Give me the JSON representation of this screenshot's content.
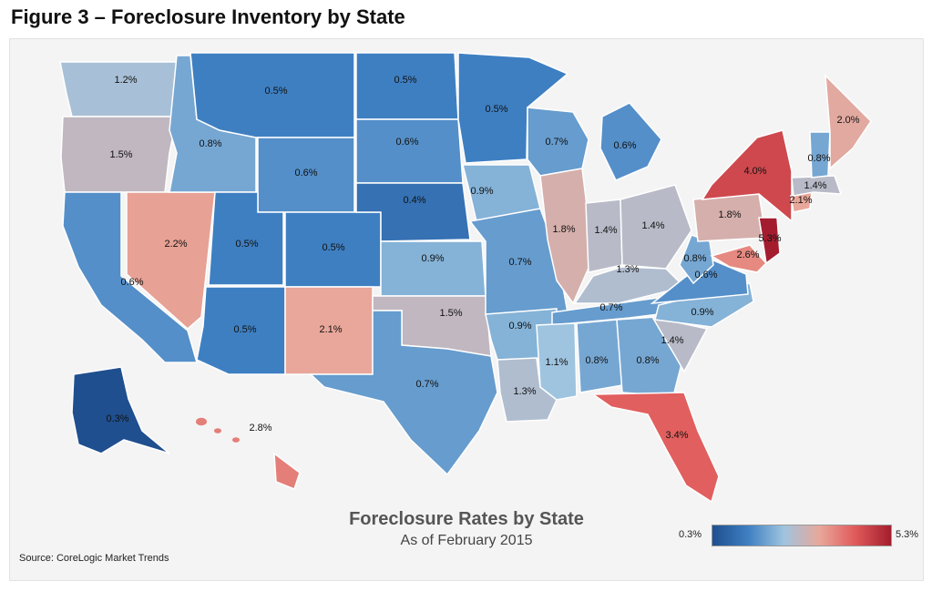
{
  "figure_title": "Figure 3 – Foreclosure Inventory by State",
  "chart_data": {
    "type": "choropleth",
    "title": "Foreclosure Rates by State",
    "subtitle": "As of February 2015",
    "source": "Source: CoreLogic Market Trends",
    "value_range": [
      0.3,
      5.3
    ],
    "legend": {
      "min_label": "0.3%",
      "max_label": "5.3%",
      "colors": [
        "#1f4f8f",
        "#3e7fc2",
        "#9fc4df",
        "#e8a79a",
        "#e05a5a",
        "#a31d2e"
      ]
    },
    "states": [
      {
        "id": "WA",
        "value": 1.2,
        "label": "1.2%"
      },
      {
        "id": "OR",
        "value": 1.5,
        "label": "1.5%"
      },
      {
        "id": "CA",
        "value": 0.6,
        "label": "0.6%"
      },
      {
        "id": "NV",
        "value": 2.2,
        "label": "2.2%"
      },
      {
        "id": "ID",
        "value": 0.8,
        "label": "0.8%"
      },
      {
        "id": "MT",
        "value": 0.5,
        "label": "0.5%"
      },
      {
        "id": "WY",
        "value": 0.6,
        "label": "0.6%"
      },
      {
        "id": "UT",
        "value": 0.5,
        "label": "0.5%"
      },
      {
        "id": "CO",
        "value": 0.5,
        "label": "0.5%"
      },
      {
        "id": "AZ",
        "value": 0.5,
        "label": "0.5%"
      },
      {
        "id": "NM",
        "value": 2.1,
        "label": "2.1%"
      },
      {
        "id": "ND",
        "value": 0.5,
        "label": "0.5%"
      },
      {
        "id": "SD",
        "value": 0.6,
        "label": "0.6%"
      },
      {
        "id": "NE",
        "value": 0.4,
        "label": "0.4%"
      },
      {
        "id": "KS",
        "value": 0.9,
        "label": "0.9%"
      },
      {
        "id": "OK",
        "value": 1.5,
        "label": "1.5%"
      },
      {
        "id": "TX",
        "value": 0.7,
        "label": "0.7%"
      },
      {
        "id": "MN",
        "value": 0.5,
        "label": "0.5%"
      },
      {
        "id": "IA",
        "value": 0.9,
        "label": "0.9%"
      },
      {
        "id": "MO",
        "value": 0.7,
        "label": "0.7%"
      },
      {
        "id": "AR",
        "value": 0.9,
        "label": "0.9%"
      },
      {
        "id": "LA",
        "value": 1.3,
        "label": "1.3%"
      },
      {
        "id": "WI",
        "value": 0.7,
        "label": "0.7%"
      },
      {
        "id": "IL",
        "value": 1.8,
        "label": "1.8%"
      },
      {
        "id": "MI",
        "value": 0.6,
        "label": "0.6%"
      },
      {
        "id": "IN",
        "value": 1.4,
        "label": "1.4%"
      },
      {
        "id": "OH",
        "value": 1.4,
        "label": "1.4%"
      },
      {
        "id": "KY",
        "value": 1.3,
        "label": "1.3%"
      },
      {
        "id": "TN",
        "value": 0.7,
        "label": "0.7%"
      },
      {
        "id": "MS",
        "value": 1.1,
        "label": "1.1%"
      },
      {
        "id": "AL",
        "value": 0.8,
        "label": "0.8%"
      },
      {
        "id": "GA",
        "value": 0.8,
        "label": "0.8%"
      },
      {
        "id": "FL",
        "value": 3.4,
        "label": "3.4%"
      },
      {
        "id": "SC",
        "value": 1.4,
        "label": "1.4%"
      },
      {
        "id": "NC",
        "value": 0.9,
        "label": "0.9%"
      },
      {
        "id": "VA",
        "value": 0.6,
        "label": "0.6%"
      },
      {
        "id": "WV",
        "value": 0.8,
        "label": "0.8%"
      },
      {
        "id": "PA",
        "value": 1.8,
        "label": "1.8%"
      },
      {
        "id": "NY",
        "value": 4.0,
        "label": "4.0%"
      },
      {
        "id": "NJ",
        "value": 5.3,
        "label": "5.3%"
      },
      {
        "id": "MD",
        "value": 2.6,
        "label": "2.6%"
      },
      {
        "id": "CT",
        "value": 2.1,
        "label": "2.1%"
      },
      {
        "id": "MA",
        "value": 1.4,
        "label": "1.4%"
      },
      {
        "id": "NH",
        "value": 0.8,
        "label": "0.8%"
      },
      {
        "id": "ME",
        "value": 2.0,
        "label": "2.0%"
      },
      {
        "id": "AK",
        "value": 0.3,
        "label": "0.3%"
      },
      {
        "id": "HI",
        "value": 2.8,
        "label": "2.8%"
      }
    ]
  }
}
